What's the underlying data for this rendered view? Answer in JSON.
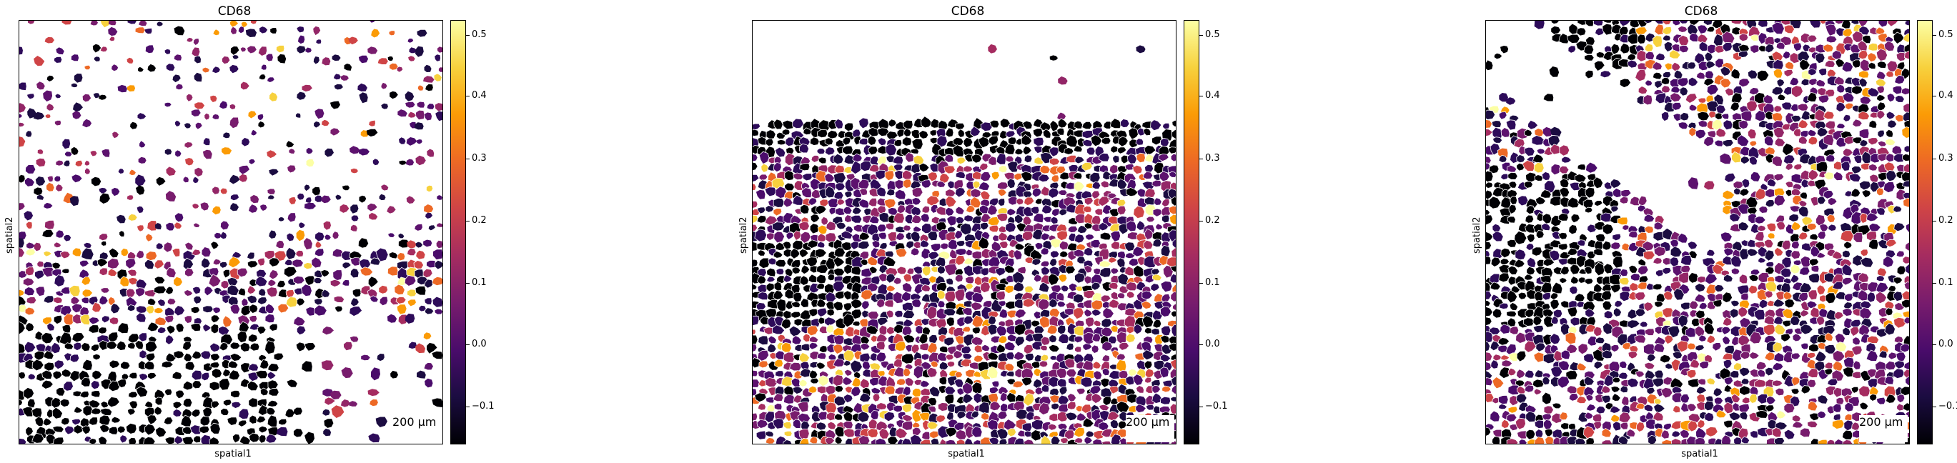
{
  "panels": [
    {
      "title": "CD68",
      "xlabel": "spatial1",
      "ylabel": "spatial2",
      "scalebar": "200 µm"
    },
    {
      "title": "CD68",
      "xlabel": "spatial1",
      "ylabel": "spatial2",
      "scalebar": "200 µm"
    },
    {
      "title": "CD68",
      "xlabel": "spatial1",
      "ylabel": "spatial2",
      "scalebar": "200 µm"
    }
  ],
  "colorbar": {
    "colormap": "inferno",
    "ticks": [
      "0.5",
      "0.4",
      "0.3",
      "0.2",
      "0.1",
      "0.0",
      "−0.1"
    ],
    "colors": [
      "#000004",
      "#1b0c41",
      "#4a0c6b",
      "#781c6d",
      "#a52c60",
      "#cf4446",
      "#ed6925",
      "#fb9b06",
      "#f7d13d",
      "#fcffa4"
    ]
  }
}
